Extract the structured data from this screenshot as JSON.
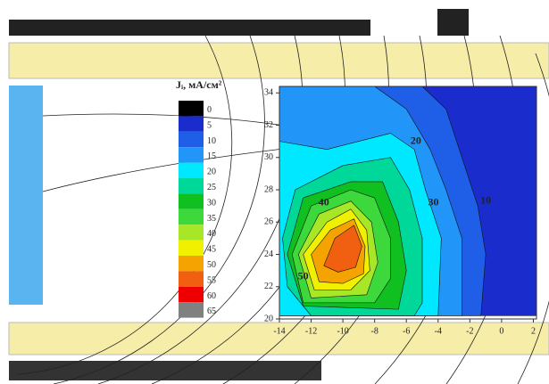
{
  "chart_data": {
    "type": "contour",
    "title": "Jᵢ, мА/см²",
    "xlim": [
      -14,
      2.2
    ],
    "ylim": [
      20,
      34.4
    ],
    "xticks": [
      -14,
      -12,
      -10,
      -8,
      -6,
      -4,
      -2,
      0,
      2
    ],
    "yticks": [
      20,
      22,
      24,
      26,
      28,
      30,
      32,
      34
    ],
    "colorbar": [
      {
        "level": 0,
        "color": "#000000"
      },
      {
        "level": 5,
        "color": "#1a2ccc"
      },
      {
        "level": 10,
        "color": "#1f5ee6"
      },
      {
        "level": 15,
        "color": "#2196f8"
      },
      {
        "level": 20,
        "color": "#00e8ff"
      },
      {
        "level": 25,
        "color": "#00d89a"
      },
      {
        "level": 30,
        "color": "#10c020"
      },
      {
        "level": 35,
        "color": "#3cd83c"
      },
      {
        "level": 40,
        "color": "#a8e628"
      },
      {
        "level": 45,
        "color": "#f0f000"
      },
      {
        "level": 50,
        "color": "#f5a300"
      },
      {
        "level": 55,
        "color": "#f06010"
      },
      {
        "level": 60,
        "color": "#ee0000"
      },
      {
        "level": 65,
        "color": "#808080"
      }
    ],
    "regions": [
      {
        "level": 5,
        "points": [
          [
            -14,
            20.2
          ],
          [
            -14,
            34.4
          ],
          [
            2.2,
            34.4
          ],
          [
            2.2,
            20.2
          ]
        ]
      },
      {
        "level": 10,
        "points": [
          [
            -14,
            20.2
          ],
          [
            -14,
            34.4
          ],
          [
            -5,
            34.4
          ],
          [
            -3.5,
            33
          ],
          [
            -2.5,
            30
          ],
          [
            -1.5,
            27
          ],
          [
            -1,
            24
          ],
          [
            -1.3,
            20.2
          ]
        ]
      },
      {
        "level": 15,
        "points": [
          [
            -14,
            20.2
          ],
          [
            -14,
            34.4
          ],
          [
            -8,
            34.4
          ],
          [
            -6,
            33
          ],
          [
            -4.5,
            30.5
          ],
          [
            -3.5,
            28
          ],
          [
            -2.5,
            25
          ],
          [
            -2.5,
            20.2
          ]
        ]
      },
      {
        "level": 20,
        "points": [
          [
            -14,
            20.2
          ],
          [
            -14,
            31
          ],
          [
            -11,
            30.5
          ],
          [
            -7,
            31.5
          ],
          [
            -5.5,
            30.5
          ],
          [
            -4.8,
            28
          ],
          [
            -3.8,
            25
          ],
          [
            -4,
            20.2
          ]
        ]
      },
      {
        "level": 25,
        "points": [
          [
            -12,
            20.2
          ],
          [
            -13.5,
            22
          ],
          [
            -13.8,
            25
          ],
          [
            -13,
            28
          ],
          [
            -10,
            29.5
          ],
          [
            -7,
            30
          ],
          [
            -5.8,
            28
          ],
          [
            -5,
            25
          ],
          [
            -5,
            21
          ],
          [
            -5.5,
            20.2
          ]
        ]
      },
      {
        "level": 30,
        "points": [
          [
            -12.5,
            20.8
          ],
          [
            -13.5,
            24
          ],
          [
            -12.5,
            27.5
          ],
          [
            -9.5,
            28.5
          ],
          [
            -7.5,
            28.5
          ],
          [
            -6.5,
            26
          ],
          [
            -6,
            23
          ],
          [
            -6.5,
            20.6
          ]
        ]
      },
      {
        "level": 35,
        "points": [
          [
            -12.5,
            21
          ],
          [
            -13.2,
            24
          ],
          [
            -12,
            27
          ],
          [
            -9.5,
            28
          ],
          [
            -8,
            27.5
          ],
          [
            -7,
            25
          ],
          [
            -7,
            22.5
          ],
          [
            -8,
            21
          ]
        ]
      },
      {
        "level": 40,
        "points": [
          [
            -12,
            21.3
          ],
          [
            -12.8,
            24
          ],
          [
            -11.5,
            26.5
          ],
          [
            -9.5,
            27.3
          ],
          [
            -8.2,
            26
          ],
          [
            -7.8,
            23.5
          ],
          [
            -8.5,
            21.5
          ]
        ]
      },
      {
        "level": 45,
        "points": [
          [
            -11.8,
            21.8
          ],
          [
            -12.5,
            24
          ],
          [
            -11,
            26
          ],
          [
            -9.5,
            26.8
          ],
          [
            -8.5,
            25.5
          ],
          [
            -8.3,
            23
          ],
          [
            -9.5,
            21.8
          ]
        ]
      },
      {
        "level": 50,
        "points": [
          [
            -11.5,
            22.3
          ],
          [
            -12,
            24
          ],
          [
            -10.8,
            25.5
          ],
          [
            -9.3,
            26.2
          ],
          [
            -8.6,
            24.5
          ],
          [
            -8.7,
            22.8
          ],
          [
            -10,
            22.2
          ]
        ]
      },
      {
        "level": 55,
        "points": [
          [
            -11.2,
            23.3
          ],
          [
            -10.5,
            25
          ],
          [
            -9.3,
            25.8
          ],
          [
            -8.8,
            24.5
          ],
          [
            -9.2,
            23.2
          ],
          [
            -10.3,
            22.9
          ]
        ]
      }
    ],
    "contour_labels": [
      {
        "value": 20,
        "x": -5.4,
        "y": 31
      },
      {
        "value": 30,
        "x": -4.3,
        "y": 27.2
      },
      {
        "value": 10,
        "x": -1,
        "y": 27.3
      },
      {
        "value": 40,
        "x": -11.2,
        "y": 27.2
      },
      {
        "value": 50,
        "x": -12.5,
        "y": 22.6
      }
    ]
  }
}
